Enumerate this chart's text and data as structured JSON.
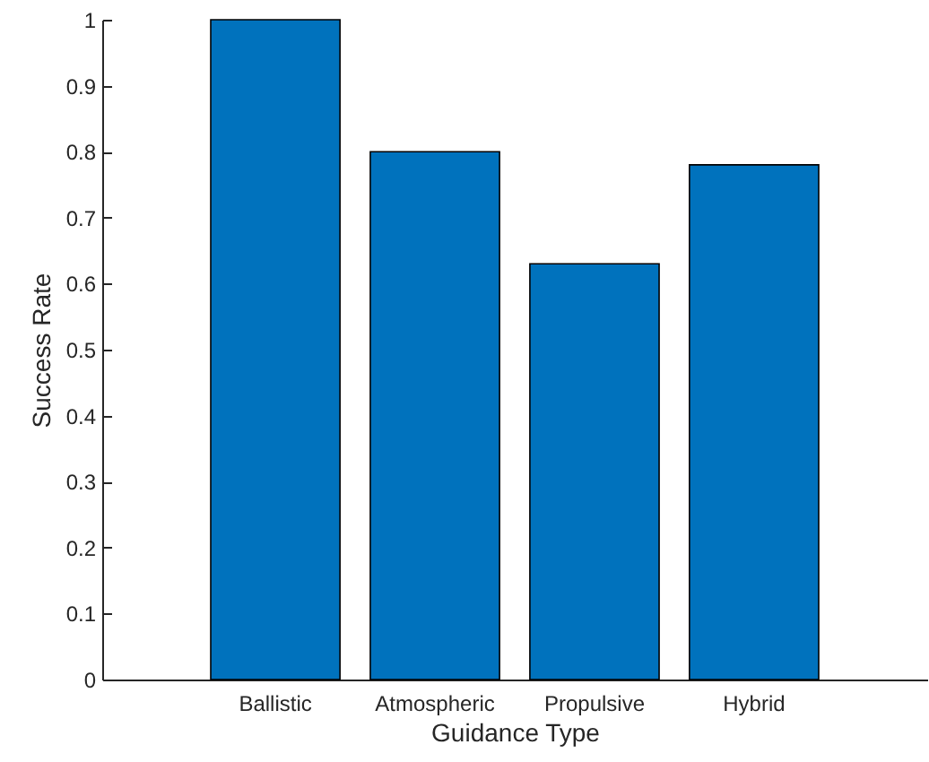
{
  "chart_data": {
    "type": "bar",
    "xlabel": "Guidance Type",
    "ylabel": "Success Rate",
    "categories": [
      "Ballistic",
      "Atmospheric",
      "Propulsive",
      "Hybrid"
    ],
    "values": [
      1.0,
      0.8,
      0.63,
      0.78
    ],
    "color": "#0072bd",
    "ylim": [
      0,
      1
    ],
    "yticks": [
      0,
      0.1,
      0.2,
      0.3,
      0.4,
      0.5,
      0.6,
      0.7,
      0.8,
      0.9,
      1
    ],
    "grid": false,
    "legend": false
  }
}
